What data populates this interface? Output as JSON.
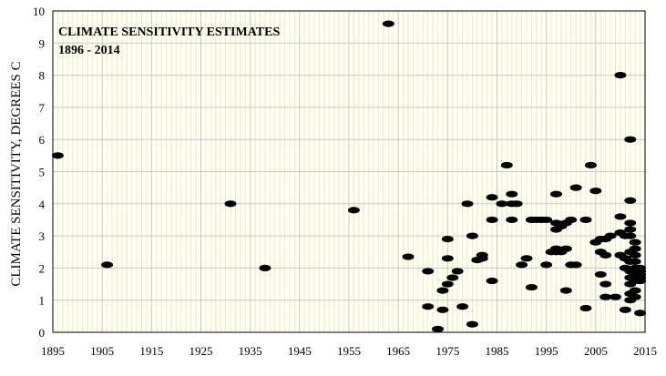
{
  "chart_data": {
    "type": "scatter",
    "title": "CLIMATE SENSITIVITY ESTIMATES",
    "subtitle": "1896 - 2014",
    "xlabel": "",
    "ylabel": "CLIMATE SENSITIVITY, DEGREES C",
    "xlim": [
      1895,
      2015
    ],
    "ylim": [
      0,
      10
    ],
    "x_ticks": [
      1895,
      1905,
      1915,
      1925,
      1935,
      1945,
      1955,
      1965,
      1975,
      1985,
      1995,
      2005,
      2015
    ],
    "y_ticks": [
      0,
      1,
      2,
      3,
      4,
      5,
      6,
      7,
      8,
      9,
      10
    ],
    "x_minor_step": 1,
    "grid": true,
    "colors": {
      "plot_background": "#fffff0",
      "major_grid": "#c8c8c8",
      "minor_grid": "#e9e9dc",
      "marker": "#000000"
    },
    "series": [
      {
        "points": [
          [
            1896,
            5.5
          ],
          [
            1906,
            2.1
          ],
          [
            1931,
            4.0
          ],
          [
            1938,
            2.0
          ],
          [
            1956,
            3.8
          ],
          [
            1963,
            9.6
          ],
          [
            1967,
            2.35
          ],
          [
            1971,
            1.9
          ],
          [
            1971,
            0.8
          ],
          [
            1973,
            0.1
          ],
          [
            1974,
            1.3
          ],
          [
            1974,
            0.7
          ],
          [
            1975,
            2.9
          ],
          [
            1975,
            2.3
          ],
          [
            1975,
            1.5
          ],
          [
            1976,
            1.7
          ],
          [
            1977,
            1.9
          ],
          [
            1978,
            0.8
          ],
          [
            1979,
            4.0
          ],
          [
            1980,
            3.0
          ],
          [
            1980,
            0.25
          ],
          [
            1981,
            2.25
          ],
          [
            1982,
            2.3
          ],
          [
            1982,
            2.4
          ],
          [
            1984,
            4.2
          ],
          [
            1984,
            3.5
          ],
          [
            1984,
            1.6
          ],
          [
            1986,
            4.0
          ],
          [
            1987,
            5.2
          ],
          [
            1988,
            4.0
          ],
          [
            1988,
            3.5
          ],
          [
            1988,
            4.3
          ],
          [
            1989,
            4.0
          ],
          [
            1990,
            2.1
          ],
          [
            1991,
            2.3
          ],
          [
            1992,
            3.5
          ],
          [
            1992,
            1.4
          ],
          [
            1993,
            3.5
          ],
          [
            1994,
            3.5
          ],
          [
            1995,
            3.5
          ],
          [
            1995,
            2.1
          ],
          [
            1996,
            2.5
          ],
          [
            1997,
            4.3
          ],
          [
            1997,
            3.4
          ],
          [
            1997,
            2.6
          ],
          [
            1997,
            2.5
          ],
          [
            1997,
            3.2
          ],
          [
            1998,
            3.3
          ],
          [
            1998,
            2.5
          ],
          [
            1999,
            3.4
          ],
          [
            1999,
            2.6
          ],
          [
            1999,
            1.3
          ],
          [
            2000,
            3.5
          ],
          [
            2000,
            2.1
          ],
          [
            2001,
            4.5
          ],
          [
            2001,
            2.1
          ],
          [
            2003,
            0.75
          ],
          [
            2003,
            3.5
          ],
          [
            2004,
            5.2
          ],
          [
            2005,
            4.4
          ],
          [
            2005,
            2.8
          ],
          [
            2006,
            2.9
          ],
          [
            2006,
            2.5
          ],
          [
            2006,
            1.8
          ],
          [
            2007,
            2.9
          ],
          [
            2007,
            2.4
          ],
          [
            2007,
            1.1
          ],
          [
            2007,
            1.5
          ],
          [
            2008,
            3.0
          ],
          [
            2009,
            1.1
          ],
          [
            2010,
            8.0
          ],
          [
            2010,
            3.6
          ],
          [
            2010,
            3.1
          ],
          [
            2010,
            2.4
          ],
          [
            2011,
            3.0
          ],
          [
            2011,
            2.3
          ],
          [
            2011,
            2.0
          ],
          [
            2011,
            0.7
          ],
          [
            2012,
            6.0
          ],
          [
            2012,
            4.1
          ],
          [
            2012,
            3.4
          ],
          [
            2012,
            3.2
          ],
          [
            2012,
            3.0
          ],
          [
            2012,
            2.5
          ],
          [
            2012,
            2.2
          ],
          [
            2012,
            1.9
          ],
          [
            2012,
            1.7
          ],
          [
            2012,
            1.5
          ],
          [
            2012,
            1.2
          ],
          [
            2012,
            1.0
          ],
          [
            2013,
            2.8
          ],
          [
            2013,
            2.6
          ],
          [
            2013,
            2.4
          ],
          [
            2013,
            2.2
          ],
          [
            2013,
            2.0
          ],
          [
            2013,
            1.8
          ],
          [
            2013,
            1.6
          ],
          [
            2013,
            1.3
          ],
          [
            2013,
            1.1
          ],
          [
            2014,
            2.0
          ],
          [
            2014,
            1.9
          ],
          [
            2014,
            1.8
          ],
          [
            2014,
            1.7
          ],
          [
            2014,
            1.6
          ],
          [
            2014,
            0.6
          ]
        ]
      }
    ]
  }
}
